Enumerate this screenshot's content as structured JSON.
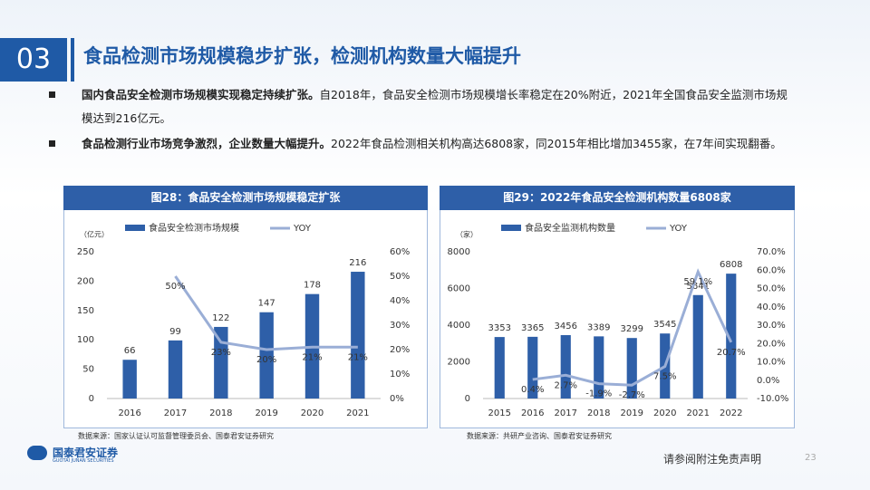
{
  "header": {
    "number": "03",
    "title": "食品检测市场规模稳步扩张，检测机构数量大幅提升"
  },
  "bullets": [
    {
      "bold": "国内食品安全检测市场规模实现稳定持续扩张。",
      "text": "自2018年，食品安全检测市场规模增长率稳定在20%附近，2021年全国食品安全监测市场规模达到216亿元。"
    },
    {
      "bold": "食品检测行业市场竞争激烈，企业数量大幅提升。",
      "text": "2022年食品检测相关机构高达6808家，同2015年相比增加3455家，在7年间实现翻番。"
    }
  ],
  "chart_data": [
    {
      "type": "combo",
      "title": "图28：食品安全检测市场规模稳定扩张",
      "y_unit": "（亿元）",
      "source": "数据来源：国家认证认可监督管理委员会、国泰君安证券研究",
      "categories": [
        "2016",
        "2017",
        "2018",
        "2019",
        "2020",
        "2021"
      ],
      "series": [
        {
          "name": "食品安全检测市场规模",
          "color": "#2e5fa8",
          "values": [
            66,
            99,
            122,
            147,
            178,
            216
          ]
        },
        {
          "name": "YOY",
          "color": "#9aaed6",
          "axis": "y2",
          "values": [
            null,
            50,
            23,
            20,
            21,
            21
          ],
          "value_labels": [
            null,
            "50%",
            "23%",
            "20%",
            "21%",
            "21%"
          ]
        }
      ],
      "ylim": [
        0,
        250
      ],
      "yticks": [
        0,
        50,
        100,
        150,
        200,
        250
      ],
      "y2lim": [
        0,
        60
      ],
      "y2ticks": [
        {
          "value": 0,
          "label": "0%"
        },
        {
          "value": 10,
          "label": "10%"
        },
        {
          "value": 20,
          "label": "20%"
        },
        {
          "value": 30,
          "label": "30%"
        },
        {
          "value": 40,
          "label": "40%"
        },
        {
          "value": 50,
          "label": "50%"
        },
        {
          "value": 60,
          "label": "60%"
        }
      ]
    },
    {
      "type": "combo",
      "title": "图29：2022年食品安全检测机构数量6808家",
      "y_unit": "（家）",
      "source": "数据来源：共研产业咨询、国泰君安证券研究",
      "categories": [
        "2015",
        "2016",
        "2017",
        "2018",
        "2019",
        "2020",
        "2021",
        "2022"
      ],
      "series": [
        {
          "name": "食品安全监测机构数量",
          "color": "#2e5fa8",
          "values": [
            3353,
            3365,
            3456,
            3389,
            3299,
            3545,
            5641,
            6808
          ]
        },
        {
          "name": "YOY",
          "color": "#9aaed6",
          "axis": "y2",
          "values": [
            null,
            0.4,
            2.7,
            -1.9,
            -2.7,
            7.5,
            59.1,
            20.7
          ],
          "value_labels": [
            null,
            "0.4%",
            "2.7%",
            "-1.9%",
            "-2.7%",
            "7.5%",
            "59.1%",
            "20.7%"
          ]
        }
      ],
      "ylim": [
        0,
        8000
      ],
      "yticks": [
        0,
        2000,
        4000,
        6000,
        8000
      ],
      "y2lim": [
        -10,
        70
      ],
      "y2ticks": [
        {
          "value": -10,
          "label": "-10.0%"
        },
        {
          "value": 0,
          "label": "0.0%"
        },
        {
          "value": 10,
          "label": "10.0%"
        },
        {
          "value": 20,
          "label": "20.0%"
        },
        {
          "value": 30,
          "label": "30.0%"
        },
        {
          "value": 40,
          "label": "40.0%"
        },
        {
          "value": 50,
          "label": "50.0%"
        },
        {
          "value": 60,
          "label": "60.0%"
        },
        {
          "value": 70,
          "label": "70.0%"
        }
      ]
    }
  ],
  "footer": {
    "logo": "国泰君安证券",
    "logo_en": "GUOTAI JUNAN SECURITIES",
    "disclaimer": "请参阅附注免责声明",
    "page": "23"
  }
}
